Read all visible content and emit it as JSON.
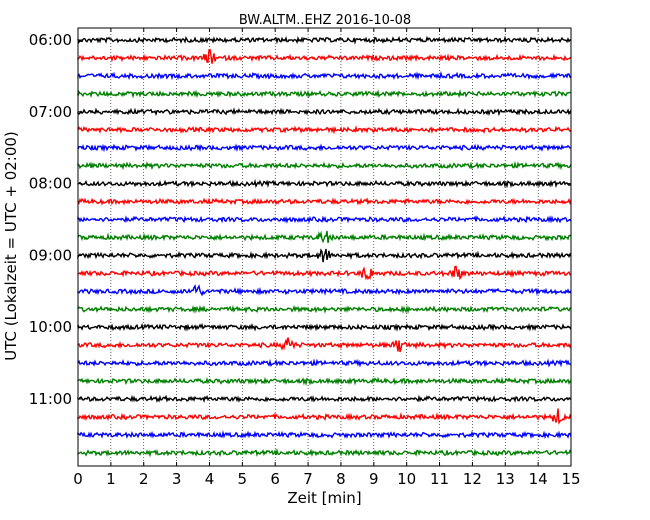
{
  "chart_data": {
    "type": "line",
    "title": "BW.ALTM..EHZ 2016-10-08",
    "xlabel": "Zeit  [min]",
    "ylabel": "UTC (Lokalzeit = UTC + 02:00)",
    "xlim": [
      0,
      15
    ],
    "x_ticks": [
      "0",
      "1",
      "2",
      "3",
      "4",
      "5",
      "6",
      "7",
      "8",
      "9",
      "10",
      "11",
      "12",
      "13",
      "14",
      "15"
    ],
    "y_tick_labels": [
      "06:00",
      "07:00",
      "08:00",
      "09:00",
      "10:00",
      "11:00"
    ],
    "grid": "vertical dotted",
    "trace_interval_minutes": 15,
    "color_cycle": [
      "#000000",
      "#ff0000",
      "#0000ff",
      "#008000"
    ],
    "traces": [
      {
        "start": "06:00",
        "color": "#000000"
      },
      {
        "start": "06:15",
        "color": "#ff0000",
        "events_min": [
          4.0
        ]
      },
      {
        "start": "06:30",
        "color": "#0000ff"
      },
      {
        "start": "06:45",
        "color": "#008000"
      },
      {
        "start": "07:00",
        "color": "#000000"
      },
      {
        "start": "07:15",
        "color": "#ff0000"
      },
      {
        "start": "07:30",
        "color": "#0000ff"
      },
      {
        "start": "07:45",
        "color": "#008000"
      },
      {
        "start": "08:00",
        "color": "#000000"
      },
      {
        "start": "08:15",
        "color": "#ff0000"
      },
      {
        "start": "08:30",
        "color": "#0000ff"
      },
      {
        "start": "08:45",
        "color": "#008000",
        "events_min": [
          7.5
        ]
      },
      {
        "start": "09:00",
        "color": "#000000",
        "events_min": [
          7.5
        ]
      },
      {
        "start": "09:15",
        "color": "#ff0000",
        "events_min": [
          8.8,
          11.5
        ]
      },
      {
        "start": "09:30",
        "color": "#0000ff",
        "events_min": [
          3.6
        ]
      },
      {
        "start": "09:45",
        "color": "#008000"
      },
      {
        "start": "10:00",
        "color": "#000000"
      },
      {
        "start": "10:15",
        "color": "#ff0000",
        "events_min": [
          6.4,
          9.8
        ]
      },
      {
        "start": "10:30",
        "color": "#0000ff"
      },
      {
        "start": "10:45",
        "color": "#008000"
      },
      {
        "start": "11:00",
        "color": "#000000"
      },
      {
        "start": "11:15",
        "color": "#ff0000",
        "events_min": [
          14.6
        ]
      },
      {
        "start": "11:30",
        "color": "#0000ff"
      },
      {
        "start": "11:45",
        "color": "#008000"
      }
    ]
  }
}
